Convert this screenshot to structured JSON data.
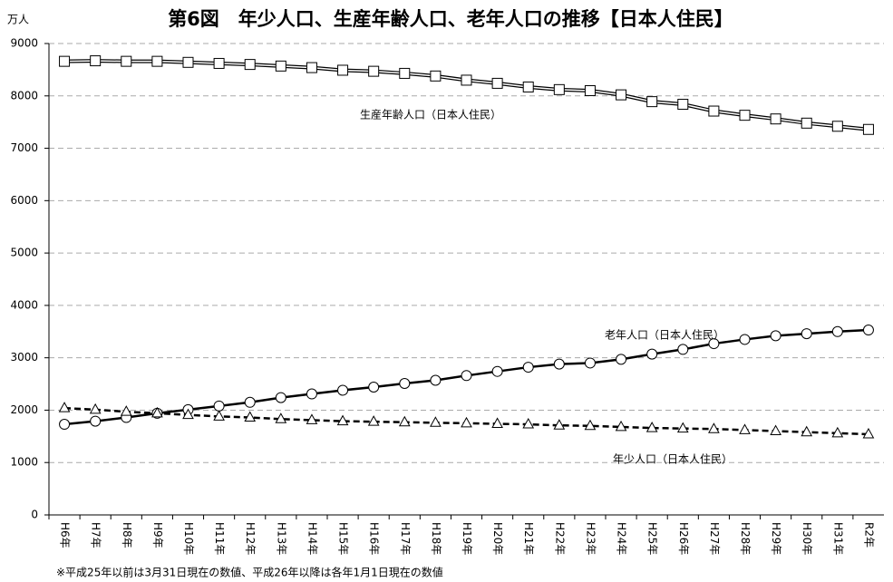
{
  "chart_data": {
    "type": "line",
    "title": "第6図　年少人口、生産年齢人口、老年人口の推移【日本人住民】",
    "y_unit": "万人",
    "note": "※平成25年以前は3月31日現在の数値、平成26年以降は各年1月1日現在の数値",
    "categories": [
      "H6年",
      "H7年",
      "H8年",
      "H9年",
      "H10年",
      "H11年",
      "H12年",
      "H13年",
      "H14年",
      "H15年",
      "H16年",
      "H17年",
      "H18年",
      "H19年",
      "H20年",
      "H21年",
      "H22年",
      "H23年",
      "H24年",
      "H25年",
      "H26年",
      "H27年",
      "H28年",
      "H29年",
      "H30年",
      "H31年",
      "R2年"
    ],
    "series": [
      {
        "name": "生産年齢人口（日本人住民）",
        "color": "#000000",
        "marker": "square",
        "dash": false,
        "values": [
          8660,
          8670,
          8660,
          8660,
          8640,
          8620,
          8600,
          8570,
          8540,
          8490,
          8470,
          8430,
          8380,
          8300,
          8240,
          8170,
          8120,
          8100,
          8020,
          7890,
          7840,
          7710,
          7630,
          7560,
          7480,
          7420,
          7360
        ]
      },
      {
        "name": "老年人口（日本人住民）",
        "color": "#000000",
        "marker": "circle",
        "dash": false,
        "values": [
          1730,
          1790,
          1860,
          1940,
          2010,
          2080,
          2150,
          2240,
          2310,
          2380,
          2440,
          2510,
          2570,
          2660,
          2740,
          2820,
          2880,
          2900,
          2970,
          3070,
          3160,
          3270,
          3350,
          3420,
          3460,
          3500,
          3530
        ]
      },
      {
        "name": "年少人口（日本人住民）",
        "color": "#000000",
        "marker": "triangle",
        "dash": true,
        "values": [
          2040,
          2010,
          1970,
          1940,
          1910,
          1880,
          1860,
          1830,
          1810,
          1790,
          1780,
          1770,
          1760,
          1750,
          1740,
          1730,
          1710,
          1700,
          1680,
          1660,
          1650,
          1640,
          1620,
          1600,
          1580,
          1560,
          1540
        ]
      }
    ],
    "ylim": [
      0,
      9000
    ],
    "yticks": [
      0,
      1000,
      2000,
      3000,
      4000,
      5000,
      6000,
      7000,
      8000,
      9000
    ],
    "grid": true
  }
}
